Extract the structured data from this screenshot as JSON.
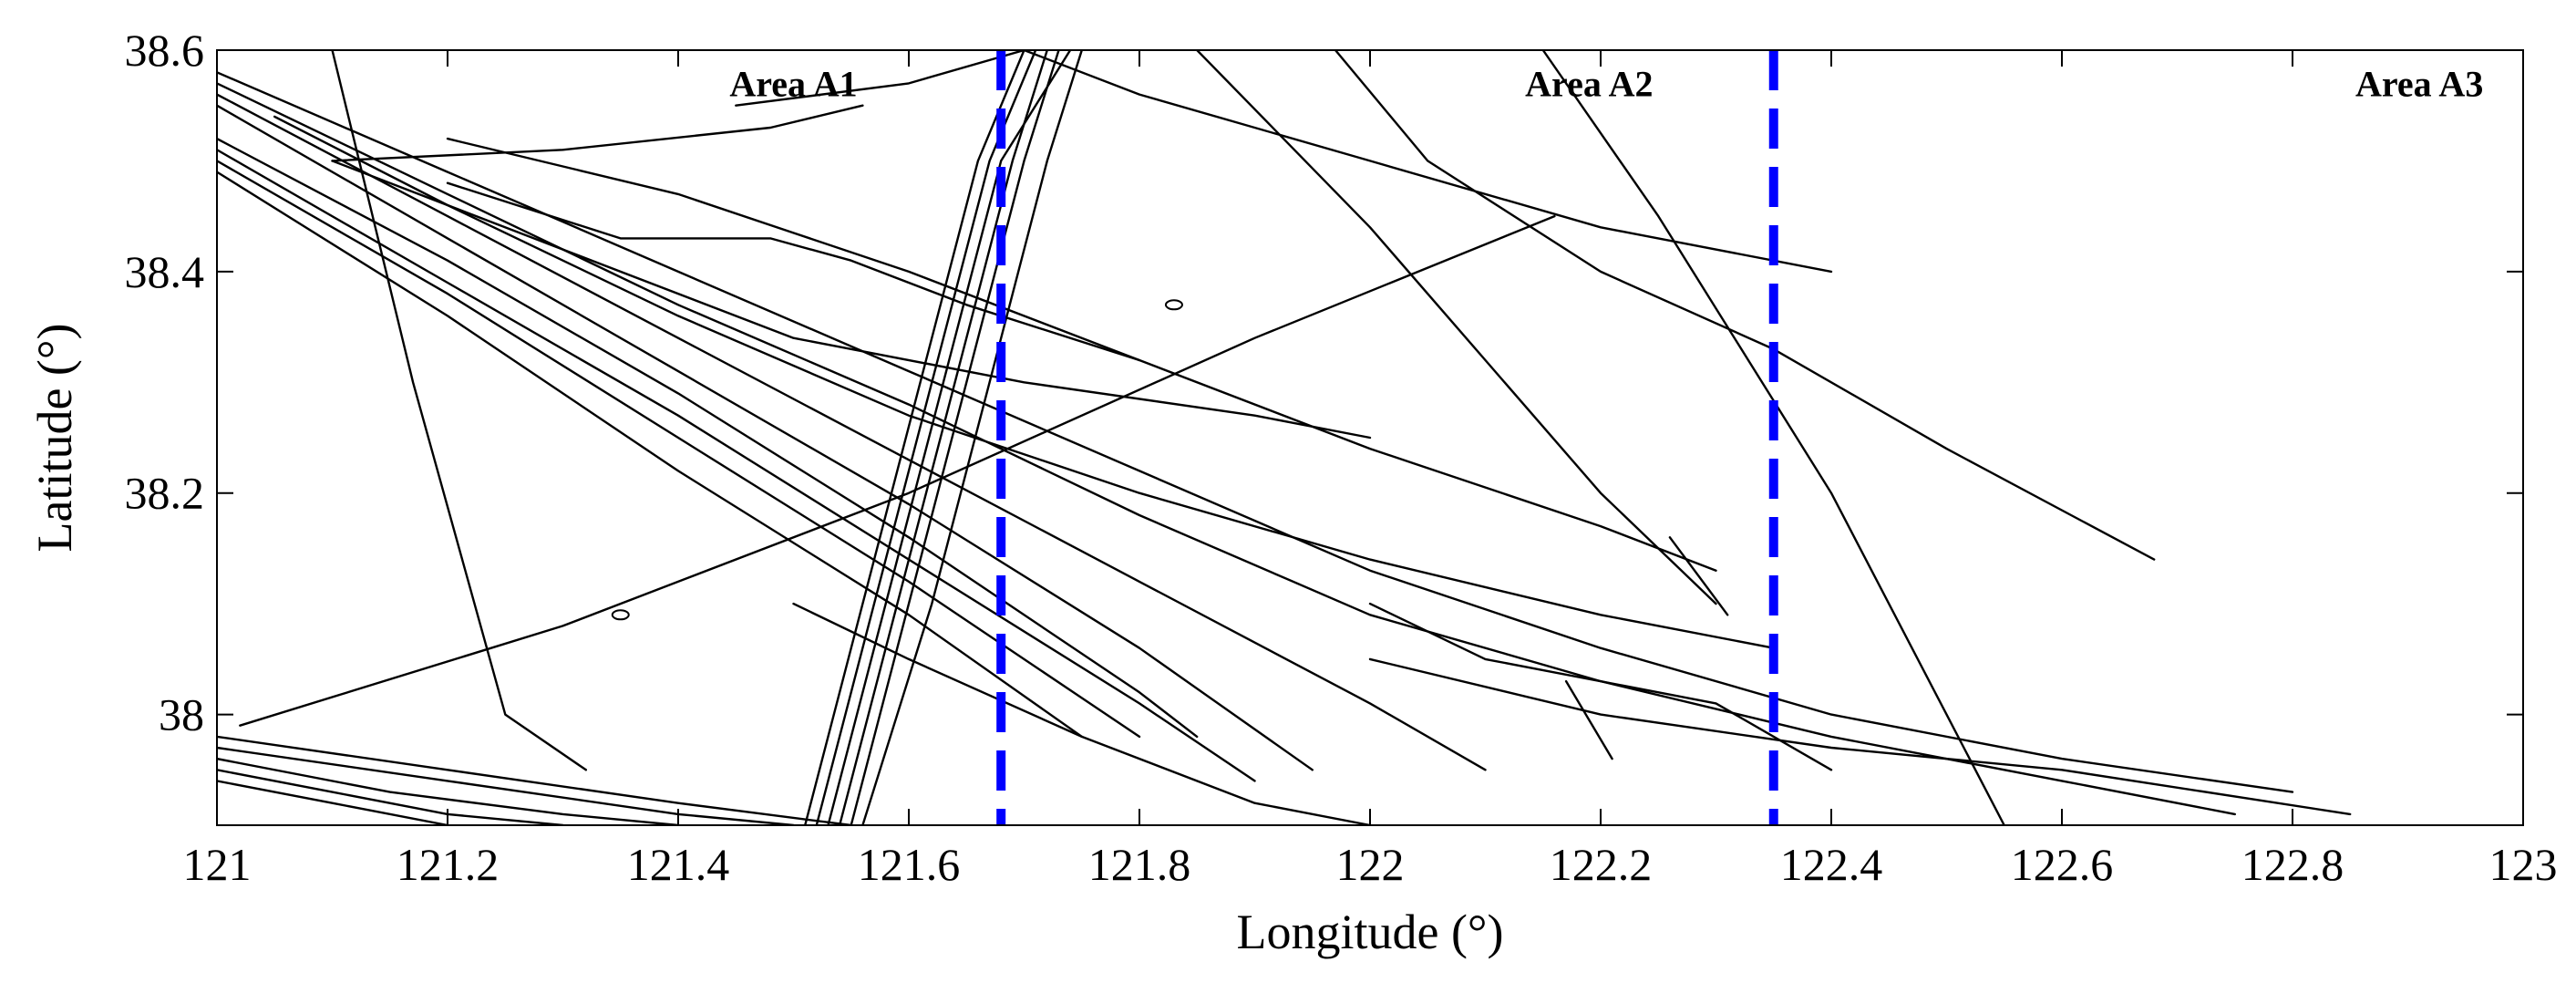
{
  "chart_data": {
    "type": "scatter",
    "title": "",
    "xlabel": "Longitude (°)",
    "ylabel": "Latitude (°)",
    "xlim": [
      121,
      123
    ],
    "ylim": [
      37.9,
      38.6
    ],
    "xticks": [
      121,
      121.2,
      121.4,
      121.6,
      121.8,
      122,
      122.2,
      122.4,
      122.6,
      122.8,
      123
    ],
    "xtick_labels": [
      "121",
      "121.2",
      "121.4",
      "121.6",
      "121.8",
      "122",
      "122.2",
      "122.4",
      "122.6",
      "122.8",
      "123"
    ],
    "yticks": [
      38,
      38.2,
      38.4,
      38.6
    ],
    "ytick_labels": [
      "38",
      "38.2",
      "38.4",
      "38.6"
    ],
    "grid": false,
    "track_color": "#000000",
    "divider_color": "#0000ff",
    "dividers": [
      {
        "name": "divider-a1-a2",
        "x": 121.68
      },
      {
        "name": "divider-a2-a3",
        "x": 122.35
      }
    ],
    "area_labels": [
      {
        "text": "Area A1",
        "x": 121.5,
        "y": 38.57
      },
      {
        "text": "Area A2",
        "x": 122.19,
        "y": 38.57
      },
      {
        "text": "Area A3",
        "x": 122.91,
        "y": 38.57
      }
    ],
    "series": [
      {
        "x": [
          121.0,
          121.2,
          121.4,
          121.6,
          121.8,
          122.0,
          122.2,
          122.4,
          122.6,
          122.8
        ],
        "y": [
          38.58,
          38.49,
          38.4,
          38.31,
          38.22,
          38.13,
          38.06,
          38.0,
          37.96,
          37.93
        ]
      },
      {
        "x": [
          121.0,
          121.2,
          121.4,
          121.6,
          121.8,
          122.0,
          122.2,
          122.4,
          122.6,
          122.75
        ],
        "y": [
          38.57,
          38.47,
          38.37,
          38.28,
          38.18,
          38.09,
          38.03,
          37.98,
          37.94,
          37.91
        ]
      },
      {
        "x": [
          121.0,
          121.2,
          121.4,
          121.6,
          121.8,
          122.0,
          122.1
        ],
        "y": [
          38.56,
          38.45,
          38.34,
          38.23,
          38.12,
          38.01,
          37.95
        ]
      },
      {
        "x": [
          121.0,
          121.2,
          121.4,
          121.6,
          121.8,
          121.95
        ],
        "y": [
          38.55,
          38.43,
          38.31,
          38.19,
          38.06,
          37.95
        ]
      },
      {
        "x": [
          121.0,
          121.2,
          121.4,
          121.6,
          121.8,
          121.85
        ],
        "y": [
          38.52,
          38.41,
          38.29,
          38.16,
          38.02,
          37.98
        ]
      },
      {
        "x": [
          121.0,
          121.2,
          121.4,
          121.6,
          121.8,
          121.9
        ],
        "y": [
          38.51,
          38.39,
          38.27,
          38.14,
          38.01,
          37.94
        ]
      },
      {
        "x": [
          121.0,
          121.2,
          121.4,
          121.6,
          121.8
        ],
        "y": [
          38.5,
          38.38,
          38.25,
          38.12,
          37.98
        ]
      },
      {
        "x": [
          121.0,
          121.2,
          121.4,
          121.6,
          121.75
        ],
        "y": [
          38.49,
          38.36,
          38.22,
          38.09,
          37.98
        ]
      },
      {
        "x": [
          121.05,
          121.2,
          121.4,
          121.6,
          121.8,
          122.0,
          122.2,
          122.35
        ],
        "y": [
          38.54,
          38.46,
          38.36,
          38.27,
          38.2,
          38.14,
          38.09,
          38.06
        ]
      },
      {
        "x": [
          121.1,
          121.3,
          121.5,
          121.7,
          121.9,
          122.0
        ],
        "y": [
          38.5,
          38.42,
          38.34,
          38.3,
          38.27,
          38.25
        ]
      },
      {
        "x": [
          121.2,
          121.4,
          121.6,
          121.8,
          122.0,
          122.2,
          122.3
        ],
        "y": [
          38.52,
          38.47,
          38.4,
          38.32,
          38.24,
          38.17,
          38.13
        ]
      },
      {
        "x": [
          121.2,
          121.35,
          121.48,
          121.55,
          121.65,
          121.8
        ],
        "y": [
          38.48,
          38.43,
          38.43,
          38.41,
          38.37,
          38.32
        ]
      },
      {
        "x": [
          121.1,
          121.3,
          121.48,
          121.56
        ],
        "y": [
          38.5,
          38.51,
          38.53,
          38.55
        ]
      },
      {
        "x": [
          121.45,
          121.6,
          121.7
        ],
        "y": [
          38.55,
          38.57,
          38.6
        ]
      },
      {
        "x": [
          121.1,
          121.17,
          121.25,
          121.32
        ],
        "y": [
          38.6,
          38.3,
          38.0,
          37.95
        ]
      },
      {
        "x": [
          121.53,
          121.58,
          121.63,
          121.68,
          121.74
        ],
        "y": [
          37.9,
          38.1,
          38.3,
          38.5,
          38.6
        ]
      },
      {
        "x": [
          121.54,
          121.59,
          121.64,
          121.69,
          121.72
        ],
        "y": [
          37.9,
          38.1,
          38.3,
          38.5,
          38.6
        ]
      },
      {
        "x": [
          121.52,
          121.57,
          121.62,
          121.67,
          121.71
        ],
        "y": [
          37.9,
          38.1,
          38.3,
          38.5,
          38.6
        ]
      },
      {
        "x": [
          121.55,
          121.6,
          121.65,
          121.7,
          121.73
        ],
        "y": [
          37.9,
          38.1,
          38.3,
          38.5,
          38.6
        ]
      },
      {
        "x": [
          121.51,
          121.56,
          121.61,
          121.66,
          121.7
        ],
        "y": [
          37.9,
          38.1,
          38.3,
          38.5,
          38.6
        ]
      },
      {
        "x": [
          121.56,
          121.62,
          121.67,
          121.72,
          121.75
        ],
        "y": [
          37.9,
          38.1,
          38.3,
          38.5,
          38.6
        ]
      },
      {
        "x": [
          121.02,
          121.3,
          121.6,
          121.9,
          122.16
        ],
        "y": [
          37.99,
          38.08,
          38.2,
          38.34,
          38.45
        ]
      },
      {
        "x": [
          121.7,
          121.8,
          122.0,
          122.2,
          122.4
        ],
        "y": [
          38.6,
          38.56,
          38.5,
          38.44,
          38.4
        ]
      },
      {
        "x": [
          121.97,
          122.05,
          122.2,
          122.35,
          122.5,
          122.68
        ],
        "y": [
          38.6,
          38.5,
          38.4,
          38.33,
          38.24,
          38.14
        ]
      },
      {
        "x": [
          121.85,
          122.0,
          122.1,
          122.2,
          122.3
        ],
        "y": [
          38.6,
          38.44,
          38.32,
          38.2,
          38.1
        ]
      },
      {
        "x": [
          122.15,
          122.25,
          122.4,
          122.5,
          122.55
        ],
        "y": [
          38.6,
          38.45,
          38.2,
          38.0,
          37.9
        ]
      },
      {
        "x": [
          121.5,
          121.6,
          121.75,
          121.9,
          122.0
        ],
        "y": [
          38.1,
          38.05,
          37.98,
          37.92,
          37.9
        ]
      },
      {
        "x": [
          121.0,
          121.2,
          121.4,
          121.55
        ],
        "y": [
          37.98,
          37.95,
          37.92,
          37.9
        ]
      },
      {
        "x": [
          121.0,
          121.2,
          121.4,
          121.5
        ],
        "y": [
          37.97,
          37.94,
          37.91,
          37.9
        ]
      },
      {
        "x": [
          121.0,
          121.15,
          121.3,
          121.4
        ],
        "y": [
          37.96,
          37.93,
          37.91,
          37.9
        ]
      },
      {
        "x": [
          121.0,
          121.1,
          121.2,
          121.3
        ],
        "y": [
          37.95,
          37.93,
          37.91,
          37.9
        ]
      },
      {
        "x": [
          121.0,
          121.1,
          121.2
        ],
        "y": [
          37.94,
          37.92,
          37.9
        ]
      },
      {
        "x": [
          122.0,
          122.2,
          122.4,
          122.6,
          122.85
        ],
        "y": [
          38.05,
          38.0,
          37.97,
          37.95,
          37.91
        ]
      },
      {
        "x": [
          122.26,
          122.31
        ],
        "y": [
          38.16,
          38.09
        ]
      },
      {
        "x": [
          122.17,
          122.21
        ],
        "y": [
          38.03,
          37.96
        ]
      },
      {
        "x": [
          122.0,
          122.1,
          122.3,
          122.4
        ],
        "y": [
          38.1,
          38.05,
          38.01,
          37.95
        ]
      }
    ],
    "specks": [
      {
        "x": 121.83,
        "y": 38.37
      },
      {
        "x": 121.35,
        "y": 38.09
      }
    ]
  }
}
